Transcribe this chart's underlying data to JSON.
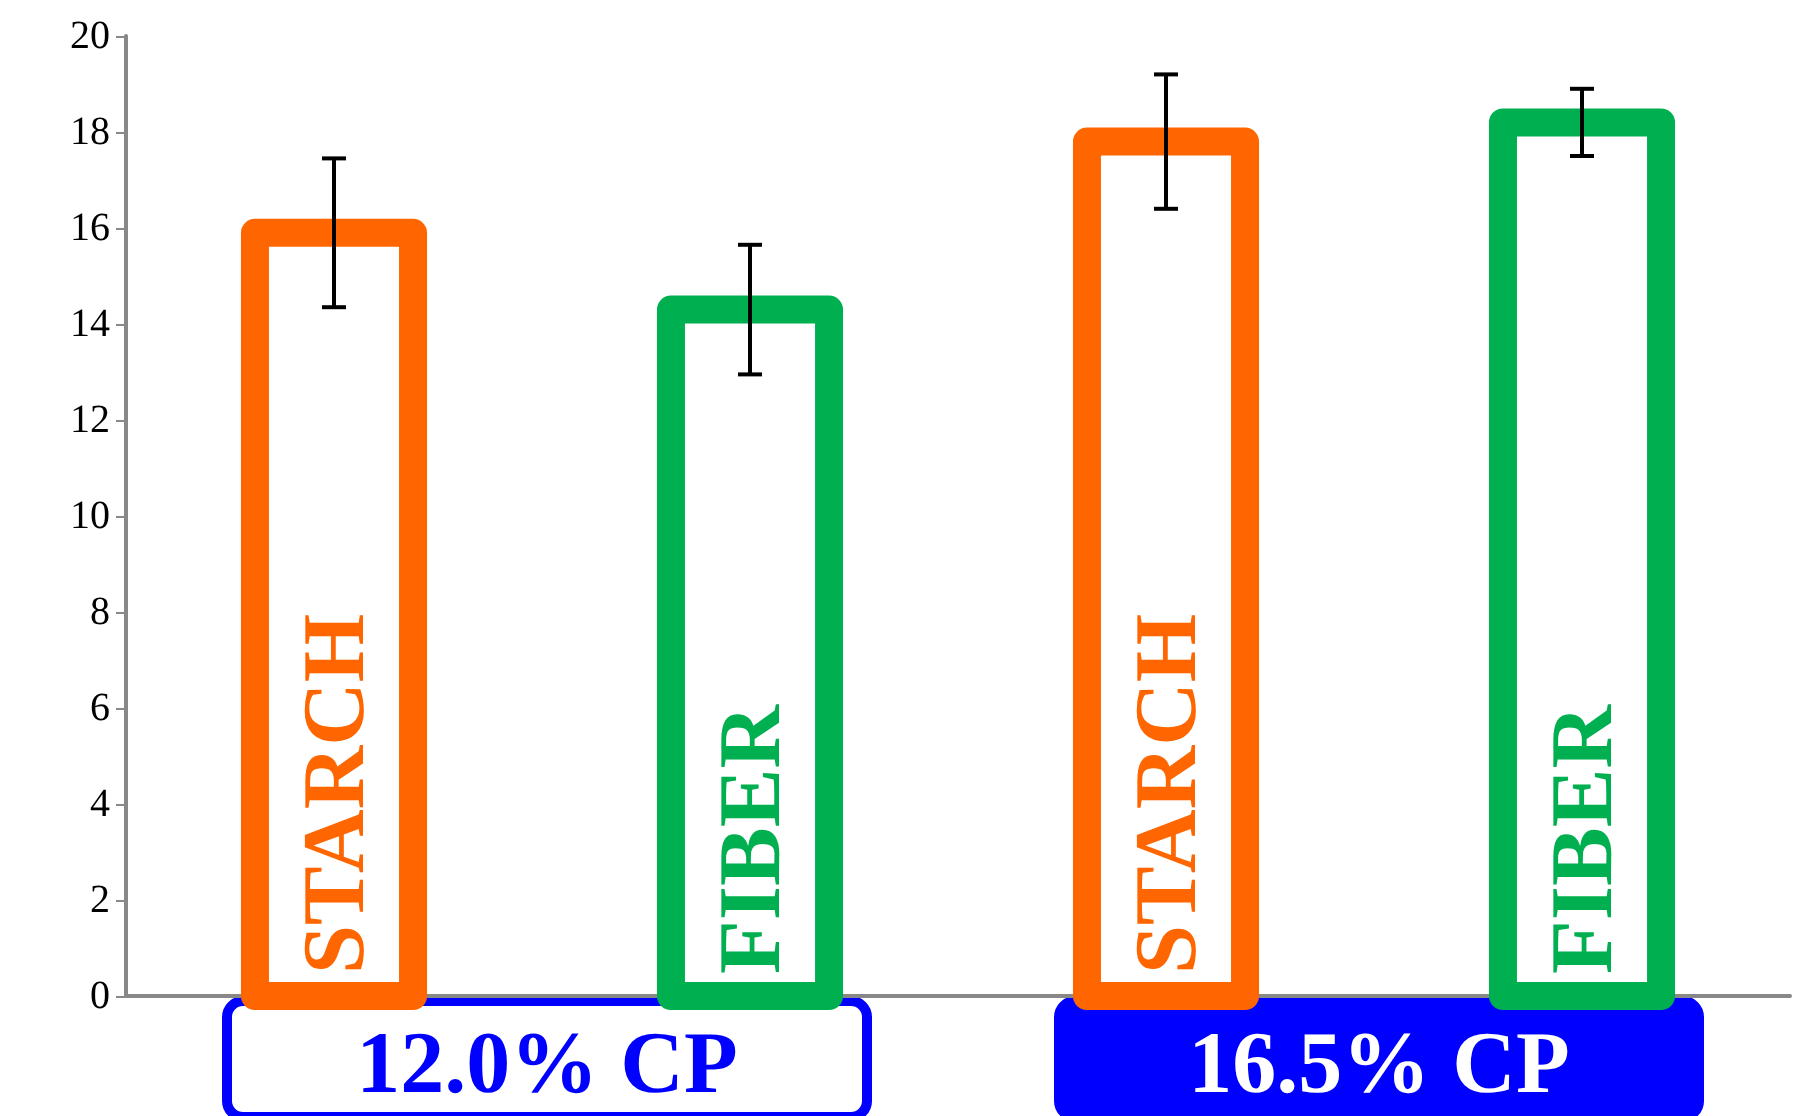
{
  "chart_data": {
    "type": "bar",
    "categories": [
      "STARCH",
      "FIBER",
      "STARCH",
      "FIBER"
    ],
    "values": [
      15.9,
      14.3,
      17.8,
      18.2
    ],
    "colors": [
      "#ff6600",
      "#00b050",
      "#ff6600",
      "#00b050"
    ],
    "errors": [
      1.55,
      1.35,
      1.4,
      0.7
    ],
    "ylim": [
      0,
      20
    ],
    "yticks": [
      0,
      2,
      4,
      6,
      8,
      10,
      12,
      14,
      16,
      18,
      20
    ],
    "grid": false,
    "annotations": [
      "12.0% CP",
      "16.5% CP"
    ]
  }
}
